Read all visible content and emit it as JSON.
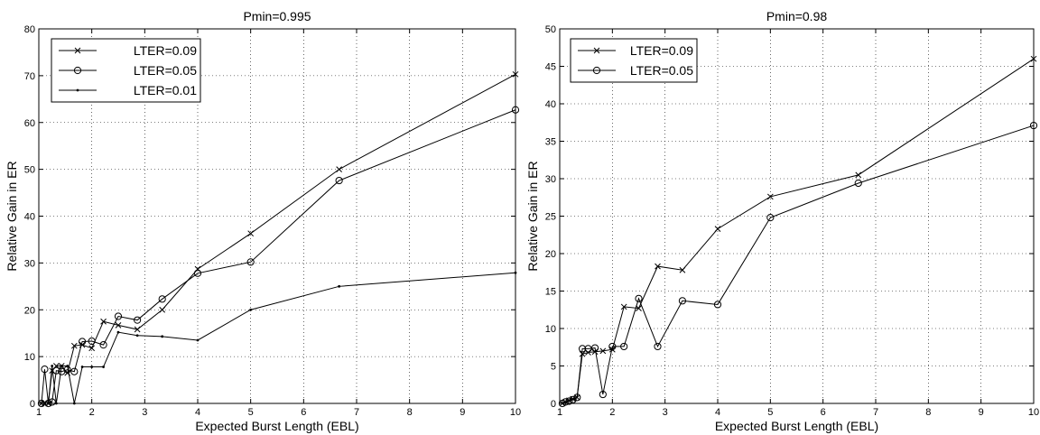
{
  "chart_data": [
    {
      "type": "line",
      "title": "Pmin=0.995",
      "xlabel": "Expected Burst Length (EBL)",
      "ylabel": "Relative Gain in ER",
      "xlim": [
        1,
        10
      ],
      "ylim": [
        0,
        80
      ],
      "xticks": [
        1,
        2,
        3,
        4,
        5,
        6,
        7,
        8,
        9,
        10
      ],
      "yticks": [
        0,
        10,
        20,
        30,
        40,
        50,
        60,
        70,
        80
      ],
      "grid": true,
      "legend_position": "top-left",
      "series": [
        {
          "name": "LTER=0.09",
          "marker": "x",
          "points": [
            [
              1.05,
              0
            ],
            [
              1.11,
              0
            ],
            [
              1.18,
              0
            ],
            [
              1.25,
              7
            ],
            [
              1.33,
              8
            ],
            [
              1.43,
              8
            ],
            [
              1.54,
              6.5
            ],
            [
              1.67,
              12.3
            ],
            [
              1.82,
              12.5
            ],
            [
              2.0,
              11.8
            ],
            [
              2.22,
              17.5
            ],
            [
              2.5,
              16.7
            ],
            [
              2.86,
              15.8
            ],
            [
              3.33,
              20
            ],
            [
              4.0,
              28.7
            ],
            [
              5.0,
              36.3
            ],
            [
              6.67,
              50
            ],
            [
              10.0,
              70.3
            ]
          ]
        },
        {
          "name": "LTER=0.05",
          "marker": "o",
          "points": [
            [
              1.05,
              0
            ],
            [
              1.11,
              7.3
            ],
            [
              1.18,
              0
            ],
            [
              1.25,
              0.3
            ],
            [
              1.33,
              7
            ],
            [
              1.43,
              6.8
            ],
            [
              1.54,
              7.2
            ],
            [
              1.67,
              6.8
            ],
            [
              1.82,
              13.2
            ],
            [
              2.0,
              13.3
            ],
            [
              2.22,
              12.5
            ],
            [
              2.5,
              18.6
            ],
            [
              2.86,
              17.8
            ],
            [
              3.33,
              22.3
            ],
            [
              4.0,
              27.8
            ],
            [
              5.0,
              30.2
            ],
            [
              6.67,
              47.6
            ],
            [
              10.0,
              62.7
            ]
          ]
        },
        {
          "name": "LTER=0.01",
          "marker": ".",
          "points": [
            [
              1.05,
              0
            ],
            [
              1.11,
              0
            ],
            [
              1.18,
              0
            ],
            [
              1.25,
              8
            ],
            [
              1.33,
              0
            ],
            [
              1.43,
              8
            ],
            [
              1.54,
              8
            ],
            [
              1.67,
              0
            ],
            [
              1.82,
              7.8
            ],
            [
              2.0,
              7.8
            ],
            [
              2.22,
              7.8
            ],
            [
              2.5,
              15.2
            ],
            [
              2.86,
              14.5
            ],
            [
              3.33,
              14.3
            ],
            [
              4.0,
              13.5
            ],
            [
              5.0,
              20
            ],
            [
              6.67,
              25
            ],
            [
              10.0,
              27.9
            ]
          ]
        }
      ]
    },
    {
      "type": "line",
      "title": "Pmin=0.98",
      "xlabel": "Expected Burst Length (EBL)",
      "ylabel": "Relative Gain in ER",
      "xlim": [
        1,
        10
      ],
      "ylim": [
        0,
        50
      ],
      "xticks": [
        1,
        2,
        3,
        4,
        5,
        6,
        7,
        8,
        9,
        10
      ],
      "yticks": [
        0,
        5,
        10,
        15,
        20,
        25,
        30,
        35,
        40,
        45,
        50
      ],
      "grid": true,
      "legend_position": "top-left",
      "series": [
        {
          "name": "LTER=0.09",
          "marker": "x",
          "points": [
            [
              1.05,
              0
            ],
            [
              1.11,
              0.2
            ],
            [
              1.18,
              0.4
            ],
            [
              1.25,
              0.6
            ],
            [
              1.33,
              0.8
            ],
            [
              1.43,
              6.6
            ],
            [
              1.54,
              6.8
            ],
            [
              1.67,
              6.9
            ],
            [
              1.82,
              7.0
            ],
            [
              2.0,
              7.2
            ],
            [
              2.22,
              12.9
            ],
            [
              2.5,
              12.7
            ],
            [
              2.86,
              18.3
            ],
            [
              3.33,
              17.8
            ],
            [
              4.0,
              23.3
            ],
            [
              5.0,
              27.6
            ],
            [
              6.67,
              30.5
            ],
            [
              10.0,
              46
            ]
          ]
        },
        {
          "name": "LTER=0.05",
          "marker": "o",
          "points": [
            [
              1.05,
              0
            ],
            [
              1.11,
              0.2
            ],
            [
              1.18,
              0.3
            ],
            [
              1.25,
              0.5
            ],
            [
              1.33,
              0.8
            ],
            [
              1.43,
              7.3
            ],
            [
              1.54,
              7.3
            ],
            [
              1.67,
              7.4
            ],
            [
              1.82,
              1.2
            ],
            [
              2.0,
              7.6
            ],
            [
              2.22,
              7.6
            ],
            [
              2.5,
              14
            ],
            [
              2.86,
              7.6
            ],
            [
              3.33,
              13.7
            ],
            [
              4.0,
              13.2
            ],
            [
              5.0,
              24.8
            ],
            [
              6.67,
              29.4
            ],
            [
              10.0,
              37.1
            ]
          ]
        }
      ]
    }
  ]
}
